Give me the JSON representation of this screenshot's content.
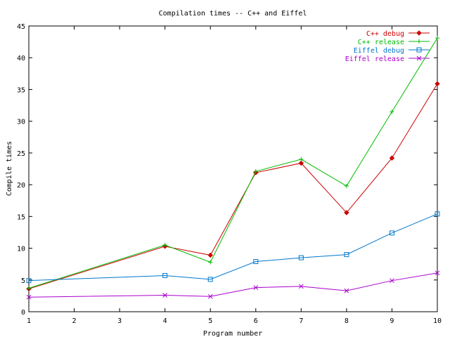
{
  "chart_data": {
    "type": "line",
    "title": "Compilation times -- C++ and Eiffel",
    "xlabel": "Program number",
    "ylabel": "Compile times",
    "xlim": [
      1,
      10
    ],
    "ylim": [
      0,
      45
    ],
    "xticks": [
      1,
      2,
      3,
      4,
      5,
      6,
      7,
      8,
      9,
      10
    ],
    "yticks": [
      0,
      5,
      10,
      15,
      20,
      25,
      30,
      35,
      40,
      45
    ],
    "grid": false,
    "legend_position": "top-right",
    "x": [
      1,
      4,
      5,
      6,
      7,
      8,
      9,
      10
    ],
    "series": [
      {
        "name": "C++ debug",
        "color": "#cc0000",
        "marker": "diamond",
        "values": [
          3.6,
          10.3,
          8.9,
          21.9,
          23.4,
          15.6,
          24.2,
          35.9
        ]
      },
      {
        "name": "C++ release",
        "color": "#00bb00",
        "marker": "plus",
        "values": [
          3.7,
          10.5,
          7.8,
          22.1,
          24.0,
          19.8,
          31.5,
          43.1
        ]
      },
      {
        "name": "Eiffel debug",
        "color": "#0077cc",
        "marker": "square",
        "values": [
          4.9,
          5.7,
          5.1,
          7.9,
          8.5,
          9.0,
          12.4,
          15.4
        ]
      },
      {
        "name": "Eiffel release",
        "color": "#aa00cc",
        "marker": "x",
        "values": [
          2.3,
          2.6,
          2.4,
          3.8,
          4.0,
          3.3,
          4.9,
          6.1
        ]
      }
    ]
  }
}
